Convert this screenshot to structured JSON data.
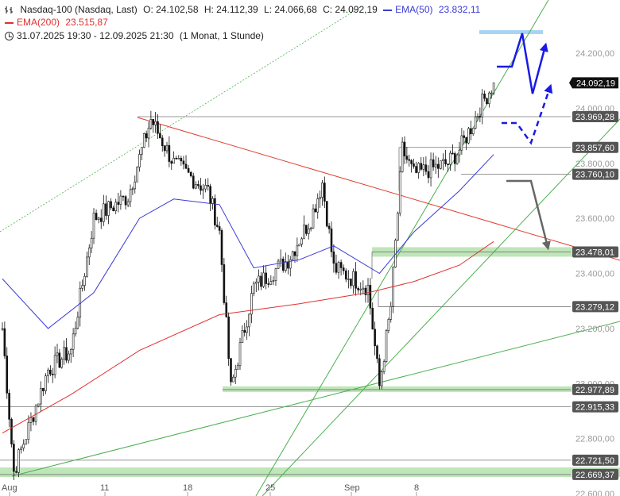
{
  "header": {
    "instrument": "Nasdaq-100 (Nasdaq, Last)",
    "open": "O: 24.102,58",
    "high": "H: 24.112,39",
    "low": "L: 24.066,68",
    "close": "C: 24.092,19",
    "ema50_label": "EMA(50)",
    "ema50_value": "23.832,11",
    "ema200_label": "EMA(200)",
    "ema200_value": "23.515,87",
    "period": "31.07.2025 19:30 - 12.09.2025 21:30",
    "interval": "(1 Monat, 1 Stunde)"
  },
  "colors": {
    "candle": "#111111",
    "ema50": "#3a3ad8",
    "ema200": "#e03030",
    "trend_green": "#4caf50",
    "resistance_red": "#e04030",
    "zone_green": "#b7e3b0",
    "zone_blue": "#a8d4f2",
    "level_line": "#777777",
    "scenario_blue": "#1a1ae6",
    "scenario_gray": "#666666",
    "label_bg": "#555555",
    "last_price_bg": "#111111"
  },
  "chart_data": {
    "type": "candlestick",
    "title": "Nasdaq-100 (Nasdaq, Last)",
    "interval": "1 Stunde",
    "ylim": [
      22600,
      24320
    ],
    "x_ticks": [
      "Aug",
      "11",
      "18",
      "25",
      "Sep",
      "8"
    ],
    "y_ticks": [
      "24.200,00",
      "24.000,00",
      "23.800,00",
      "23.600,00",
      "23.400,00",
      "23.200,00",
      "23.000,00",
      "22.800,00",
      "22.600,00"
    ],
    "y_tick_values": [
      24200,
      24000,
      23800,
      23600,
      23400,
      23200,
      23000,
      22800,
      22600
    ],
    "price_levels": [
      {
        "value": 23969.28,
        "label": "23.969,28"
      },
      {
        "value": 23857.6,
        "label": "23.857,60"
      },
      {
        "value": 23760.1,
        "label": "23.760,10"
      },
      {
        "value": 23478.01,
        "label": "23.478,01"
      },
      {
        "value": 23279.12,
        "label": "23.279,12"
      },
      {
        "value": 22977.89,
        "label": "22.977,89"
      },
      {
        "value": 22915.33,
        "label": "22.915,33"
      },
      {
        "value": 22721.5,
        "label": "22.721,50"
      },
      {
        "value": 22669.37,
        "label": "22.669,37"
      }
    ],
    "last_price": {
      "value": 24092.19,
      "label": "24.092,19"
    },
    "key_points": [
      {
        "date": "2025-07-31",
        "close": 23200
      },
      {
        "date": "2025-08-01",
        "close": 22680
      },
      {
        "date": "2025-08-04",
        "close": 23050
      },
      {
        "date": "2025-08-06",
        "close": 23120
      },
      {
        "date": "2025-08-08",
        "close": 23600
      },
      {
        "date": "2025-08-11",
        "close": 23680
      },
      {
        "date": "2025-08-13",
        "close": 23960
      },
      {
        "date": "2025-08-15",
        "close": 23800
      },
      {
        "date": "2025-08-18",
        "close": 23700
      },
      {
        "date": "2025-08-19",
        "close": 23550
      },
      {
        "date": "2025-08-20",
        "close": 22980
      },
      {
        "date": "2025-08-22",
        "close": 23350
      },
      {
        "date": "2025-08-25",
        "close": 23450
      },
      {
        "date": "2025-08-27",
        "close": 23600
      },
      {
        "date": "2025-08-28",
        "close": 23730
      },
      {
        "date": "2025-08-29",
        "close": 23420
      },
      {
        "date": "2025-09-01",
        "close": 23350
      },
      {
        "date": "2025-09-02",
        "close": 22990
      },
      {
        "date": "2025-09-03",
        "close": 23280
      },
      {
        "date": "2025-09-04",
        "close": 23850
      },
      {
        "date": "2025-09-05",
        "close": 23760
      },
      {
        "date": "2025-09-08",
        "close": 23800
      },
      {
        "date": "2025-09-09",
        "close": 23850
      },
      {
        "date": "2025-09-10",
        "close": 23930
      },
      {
        "date": "2025-09-11",
        "close": 24020
      },
      {
        "date": "2025-09-12",
        "close": 24092
      }
    ],
    "ema50_points": [
      {
        "date": "2025-07-31",
        "value": 23380
      },
      {
        "date": "2025-08-04",
        "value": 23200
      },
      {
        "date": "2025-08-08",
        "value": 23330
      },
      {
        "date": "2025-08-12",
        "value": 23600
      },
      {
        "date": "2025-08-15",
        "value": 23670
      },
      {
        "date": "2025-08-19",
        "value": 23650
      },
      {
        "date": "2025-08-22",
        "value": 23420
      },
      {
        "date": "2025-08-26",
        "value": 23450
      },
      {
        "date": "2025-08-29",
        "value": 23500
      },
      {
        "date": "2025-09-02",
        "value": 23400
      },
      {
        "date": "2025-09-05",
        "value": 23550
      },
      {
        "date": "2025-09-09",
        "value": 23700
      },
      {
        "date": "2025-09-12",
        "value": 23832
      }
    ],
    "ema200_points": [
      {
        "date": "2025-07-31",
        "value": 22820
      },
      {
        "date": "2025-08-06",
        "value": 22960
      },
      {
        "date": "2025-08-12",
        "value": 23120
      },
      {
        "date": "2025-08-19",
        "value": 23250
      },
      {
        "date": "2025-08-26",
        "value": 23290
      },
      {
        "date": "2025-09-01",
        "value": 23330
      },
      {
        "date": "2025-09-05",
        "value": 23370
      },
      {
        "date": "2025-09-09",
        "value": 23430
      },
      {
        "date": "2025-09-12",
        "value": 23516
      }
    ]
  }
}
